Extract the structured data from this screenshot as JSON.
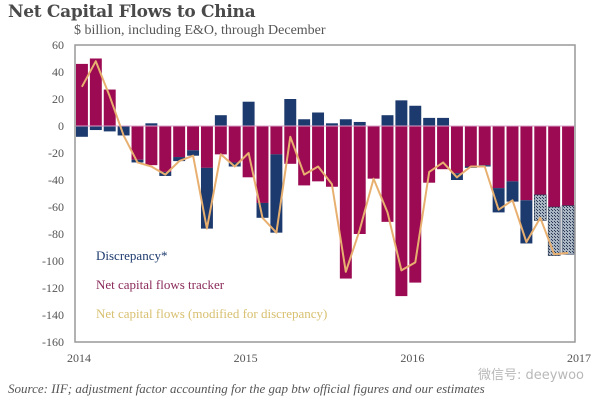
{
  "chart_data": {
    "type": "bar",
    "title": "Net Capital Flows to China",
    "subtitle": "$ billion, including E&O, through December",
    "xlabel": "",
    "ylabel": "",
    "ylim": [
      -160,
      60
    ],
    "yticks": [
      60,
      40,
      20,
      0,
      -20,
      -40,
      -60,
      -80,
      -100,
      -120,
      -140,
      -160
    ],
    "xtick_labels": [
      "2014",
      "2015",
      "2016",
      "2017"
    ],
    "grid": false,
    "legend_position": "bottom-left",
    "categories": [
      "Jan-14",
      "Feb-14",
      "Mar-14",
      "Apr-14",
      "May-14",
      "Jun-14",
      "Jul-14",
      "Aug-14",
      "Sep-14",
      "Oct-14",
      "Nov-14",
      "Dec-14",
      "Jan-15",
      "Feb-15",
      "Mar-15",
      "Apr-15",
      "May-15",
      "Jun-15",
      "Jul-15",
      "Aug-15",
      "Sep-15",
      "Oct-15",
      "Nov-15",
      "Dec-15",
      "Jan-16",
      "Feb-16",
      "Mar-16",
      "Apr-16",
      "May-16",
      "Jun-16",
      "Jul-16",
      "Aug-16",
      "Sep-16",
      "Oct-16",
      "Nov-16",
      "Dec-16"
    ],
    "series": [
      {
        "name": "Net capital flows tracker",
        "color": "#9b0a52",
        "values": [
          46,
          50,
          27,
          0,
          -25,
          -29,
          -34,
          -23,
          -18,
          -31,
          -21,
          -27,
          -38,
          -57,
          -21,
          -28,
          -44,
          -41,
          -45,
          -113,
          -80,
          -39,
          -71,
          -126,
          -116,
          -42,
          -32,
          -35,
          -30,
          -29,
          -46,
          -41,
          -55,
          -51,
          -60,
          -59
        ]
      },
      {
        "name": "Discrepancy*",
        "color": "#1d3a6e",
        "values": [
          -8,
          -3,
          -4,
          -7,
          -2,
          2,
          -3,
          -3,
          -4,
          -45,
          8,
          -3,
          18,
          -11,
          -58,
          20,
          5,
          10,
          2,
          5,
          3,
          0,
          8,
          19,
          15,
          6,
          6,
          -5,
          -1,
          -1,
          -18,
          -15,
          -32,
          -19,
          -36,
          -36
        ],
        "estimated_from_index": 33
      },
      {
        "name": "Net capital flows (modified for discrepancy)",
        "color": "#e8c878",
        "type": "line",
        "values": [
          29,
          48,
          22,
          -7,
          -27,
          -30,
          -36,
          -26,
          -22,
          -76,
          -21,
          -30,
          -20,
          -68,
          -79,
          -8,
          -36,
          -30,
          -43,
          -108,
          -77,
          -39,
          -64,
          -107,
          -101,
          -34,
          -27,
          -38,
          -30,
          -30,
          -62,
          -55,
          -86,
          -68,
          -95,
          -94
        ]
      }
    ],
    "annotations": []
  },
  "source": "Source: IIF; adjustment factor accounting for the gap btw official figures and our estimates",
  "watermark": "微信号: deeywoo"
}
